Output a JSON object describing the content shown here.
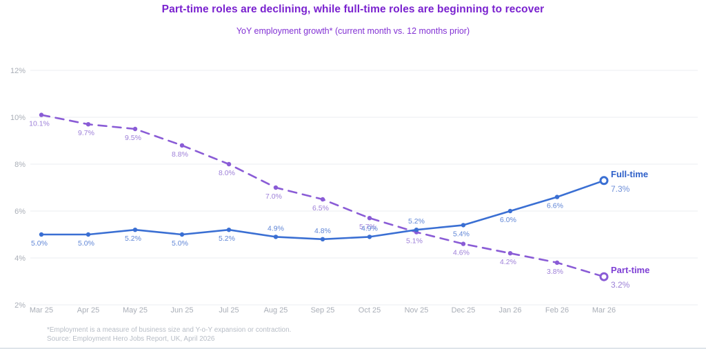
{
  "header": {
    "title": "Part-time roles are declining, while full-time roles are beginning to recover",
    "subtitle": "YoY employment growth* (current month vs. 12 months prior)"
  },
  "chart_data": {
    "type": "line",
    "title": "Part-time roles are declining, while full-time roles are beginning to recover",
    "subtitle": "YoY employment growth* (current month vs. 12 months prior)",
    "categories": [
      "Mar 25",
      "Apr 25",
      "May 25",
      "Jun 25",
      "Jul 25",
      "Aug 25",
      "Sep 25",
      "Oct 25",
      "Nov 25",
      "Dec 25",
      "Jan 26",
      "Feb 26",
      "Mar 26"
    ],
    "ylim": [
      2,
      12
    ],
    "yticks": [
      2,
      4,
      6,
      8,
      10,
      12
    ],
    "ytick_labels": [
      "2%",
      "4%",
      "6%",
      "8%",
      "10%",
      "12%"
    ],
    "grid": true,
    "legend_position": "right-end",
    "series": [
      {
        "name": "Part-time",
        "values": [
          10.1,
          9.7,
          9.5,
          8.8,
          8.0,
          7.0,
          6.5,
          5.7,
          5.1,
          4.6,
          4.2,
          3.8,
          3.2
        ],
        "labels": [
          "10.1%",
          "9.7%",
          "9.5%",
          "8.8%",
          "8.0%",
          "7.0%",
          "6.5%",
          "5.7%",
          "5.1%",
          "4.6%",
          "4.2%",
          "3.8%",
          ""
        ],
        "label_pos": [
          "below",
          "below",
          "below",
          "below",
          "below",
          "below",
          "below",
          "below",
          "below",
          "below",
          "below",
          "below",
          "legend"
        ],
        "dashed": true,
        "color": "#8a5cd6",
        "label_color": "#9d7fd8",
        "legend_label": "Part-time",
        "legend_value": "3.2%",
        "legend_label_color": "#7e3fd4",
        "legend_value_color": "#9b7fd6"
      },
      {
        "name": "Full-time",
        "values": [
          5.0,
          5.0,
          5.2,
          5.0,
          5.2,
          4.9,
          4.8,
          4.9,
          5.2,
          5.4,
          6.0,
          6.6,
          7.3
        ],
        "labels": [
          "5.0%",
          "5.0%",
          "5.2%",
          "5.0%",
          "5.2%",
          "4.9%",
          "4.8%",
          "4.9%",
          "5.2%",
          "5.4%",
          "6.0%",
          "6.6%",
          ""
        ],
        "label_pos": [
          "below",
          "below",
          "below",
          "below",
          "below",
          "above",
          "above",
          "above",
          "above",
          "below",
          "below",
          "below",
          "legend"
        ],
        "dashed": false,
        "color": "#3a6fd3",
        "label_color": "#5f85d6",
        "legend_label": "Full-time",
        "legend_value": "7.3%",
        "legend_label_color": "#2d5fc8",
        "legend_value_color": "#6d8ed8"
      }
    ],
    "axis_label_color": "#a9aeb7",
    "gridline_color": "#ebecf0"
  },
  "footnote": {
    "line1": "*Employment is a measure of business size and Y-o-Y expansion or contraction.",
    "line2": "Source: Employment Hero Jobs Report, UK, April 2026"
  }
}
